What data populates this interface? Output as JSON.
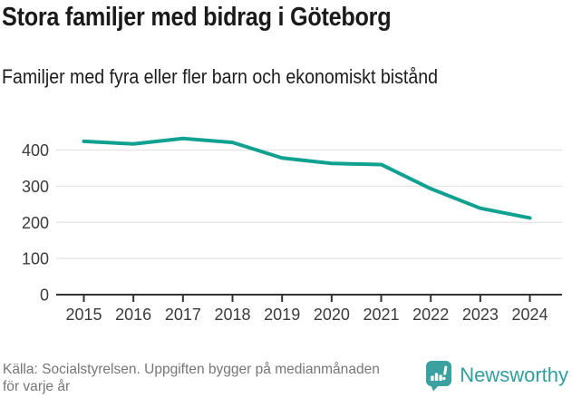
{
  "header": {
    "title": "Stora familjer med bidrag i Göteborg",
    "subtitle": "Familjer med fyra eller fler barn och ekonomiskt bistånd"
  },
  "chart_data": {
    "type": "line",
    "title": "Stora familjer med bidrag i Göteborg",
    "subtitle": "Familjer med fyra eller fler barn och ekonomiskt bistånd",
    "x": [
      2015,
      2016,
      2017,
      2018,
      2019,
      2020,
      2021,
      2022,
      2023,
      2024
    ],
    "series": [
      {
        "name": "Familjer med fyra eller fler barn och ekonomiskt bistånd",
        "values": [
          424,
          417,
          432,
          421,
          378,
          363,
          360,
          293,
          239,
          212
        ],
        "color": "#10a191"
      }
    ],
    "xlabel": "",
    "ylabel": "",
    "ylim": [
      0,
      445
    ],
    "yticks": [
      0,
      100,
      200,
      300,
      400
    ],
    "grid": true,
    "legend": "none"
  },
  "footer": {
    "source_line1": "Källa: Socialstyrelsen. Uppgiften bygger på medianmånaden",
    "source_line2": "för varje år",
    "brand": "Newsworthy"
  },
  "colors": {
    "line": "#10a191",
    "grid": "#e3e3e3",
    "axis": "#333333",
    "axis_text": "#3b3b3b",
    "title_text": "#1a1a1a",
    "source_text": "#767676",
    "brand_teal": "#3aa0a0",
    "brand_text": "#309e9f"
  },
  "icons": {
    "brand_icon": "newsworthy-speech-bubble-bar-chart-icon"
  }
}
